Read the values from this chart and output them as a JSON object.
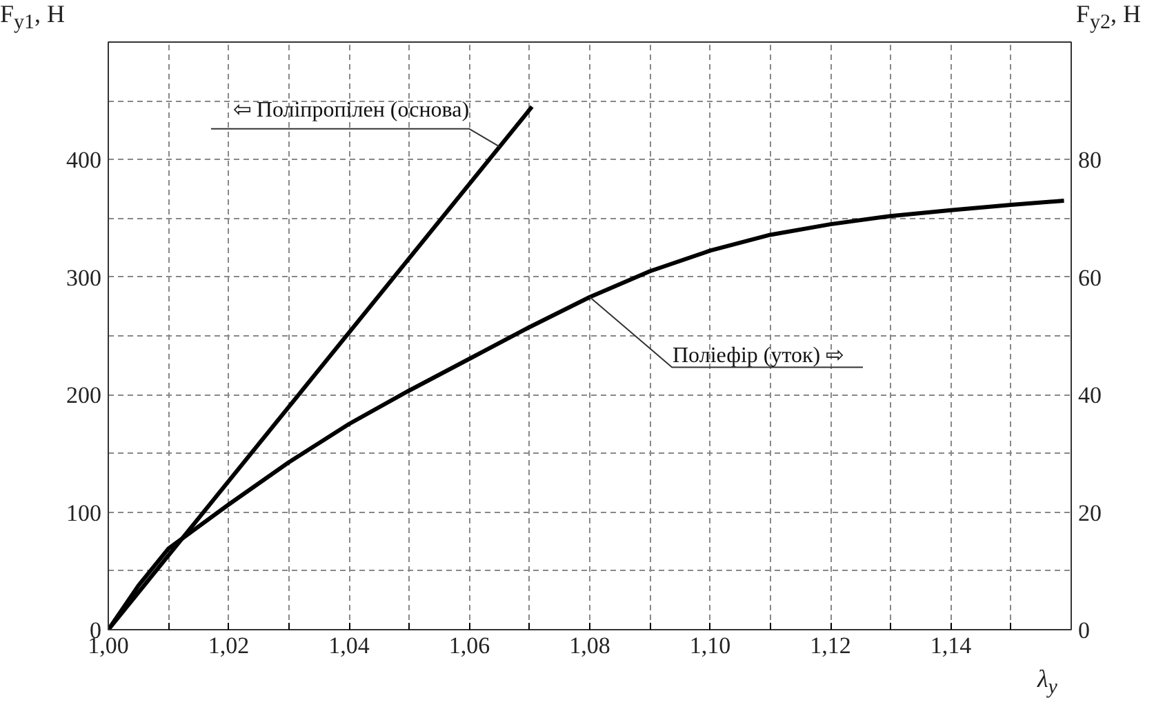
{
  "chart_data": {
    "type": "line",
    "xlabel": "λ$_{y}$",
    "ylabel": "F$_{y1}$, H",
    "y2label": "F$_{y2}$, H",
    "xlim": [
      1.0,
      1.16
    ],
    "ylim": [
      0,
      500
    ],
    "y2lim": [
      0,
      100
    ],
    "xticks": [
      {
        "value": 1.0,
        "label": "1,00"
      },
      {
        "value": 1.01,
        "label": null
      },
      {
        "value": 1.02,
        "label": "1,02"
      },
      {
        "value": 1.03,
        "label": null
      },
      {
        "value": 1.04,
        "label": "1,04"
      },
      {
        "value": 1.05,
        "label": null
      },
      {
        "value": 1.06,
        "label": "1,06"
      },
      {
        "value": 1.07,
        "label": null
      },
      {
        "value": 1.08,
        "label": "1,08"
      },
      {
        "value": 1.09,
        "label": null
      },
      {
        "value": 1.1,
        "label": "1,10"
      },
      {
        "value": 1.11,
        "label": null
      },
      {
        "value": 1.12,
        "label": "1,12"
      },
      {
        "value": 1.13,
        "label": null
      },
      {
        "value": 1.14,
        "label": "1,14"
      },
      {
        "value": 1.15,
        "label": null
      }
    ],
    "yticks": [
      0,
      {
        "value": 50,
        "label": null
      },
      100,
      {
        "value": 150,
        "label": null
      },
      200,
      {
        "value": 250,
        "label": null
      },
      300,
      {
        "value": 350,
        "label": null
      },
      400,
      {
        "value": 450,
        "label": null
      }
    ],
    "y2ticks": [
      0,
      {
        "value": 10,
        "label": null
      },
      20,
      {
        "value": 30,
        "label": null
      },
      40,
      {
        "value": 50,
        "label": null
      },
      60,
      {
        "value": 70,
        "label": null
      },
      80,
      {
        "value": 90,
        "label": null
      }
    ],
    "grid": true,
    "marker": "none",
    "line_style": "solid",
    "series": [
      {
        "color": "#000000",
        "x": [
          1.0,
          1.0704
        ],
        "values": [
          0,
          445
        ]
      },
      {
        "color": "#000000",
        "axis": "y2",
        "x": [
          1.0,
          1.005,
          1.01,
          1.02,
          1.03,
          1.04,
          1.05,
          1.06,
          1.07,
          1.08,
          1.09,
          1.1,
          1.11,
          1.12,
          1.13,
          1.14,
          1.15,
          1.1588
        ],
        "values": [
          0,
          7.5,
          13.8,
          21.3,
          28.5,
          35,
          40.7,
          46.1,
          51.5,
          56.6,
          61,
          64.5,
          67.2,
          69,
          70.4,
          71.4,
          72.3,
          73
        ]
      }
    ],
    "annotations": [
      {
        "text": "⇦ Поліпропілен (основа)",
        "x": 1.065,
        "y": 411
      },
      {
        "text": "Поліефір (уток) ⇨",
        "x": 1.08,
        "y": 283
      }
    ]
  }
}
